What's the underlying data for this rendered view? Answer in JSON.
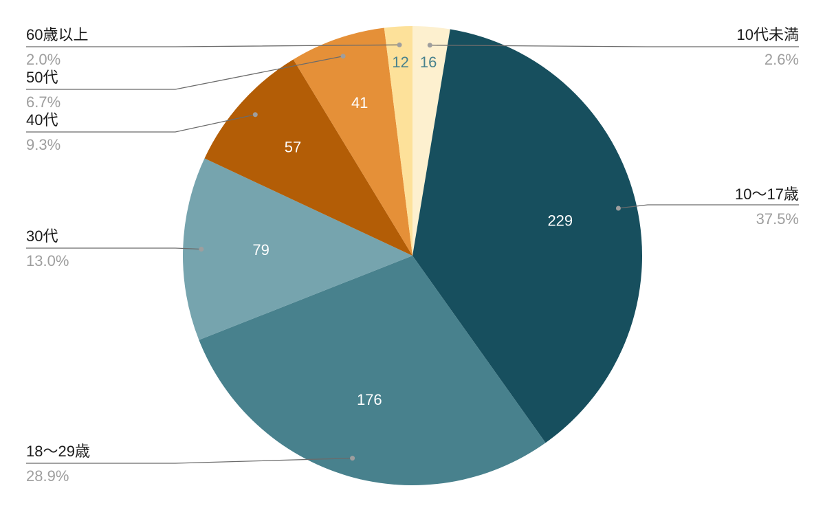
{
  "chart_data": {
    "type": "pie",
    "categories": [
      "10代未満",
      "10〜17歳",
      "18〜29歳",
      "30代",
      "40代",
      "50代",
      "60歳以上"
    ],
    "values": [
      16,
      229,
      176,
      79,
      57,
      41,
      12
    ],
    "percent_labels": [
      "2.6%",
      "37.5%",
      "28.9%",
      "13.0%",
      "9.3%",
      "6.7%",
      "2.0%"
    ],
    "colors": [
      "#fdf0cf",
      "#174f5e",
      "#48818d",
      "#76a4ae",
      "#b35d06",
      "#e59038",
      "#fde19a"
    ],
    "value_label_colors": [
      "#48818d",
      "#ffffff",
      "#ffffff",
      "#ffffff",
      "#ffffff",
      "#ffffff",
      "#48818d"
    ],
    "legend": "callout labels on both sides",
    "start_angle_deg": 0,
    "direction": "clockwise"
  }
}
